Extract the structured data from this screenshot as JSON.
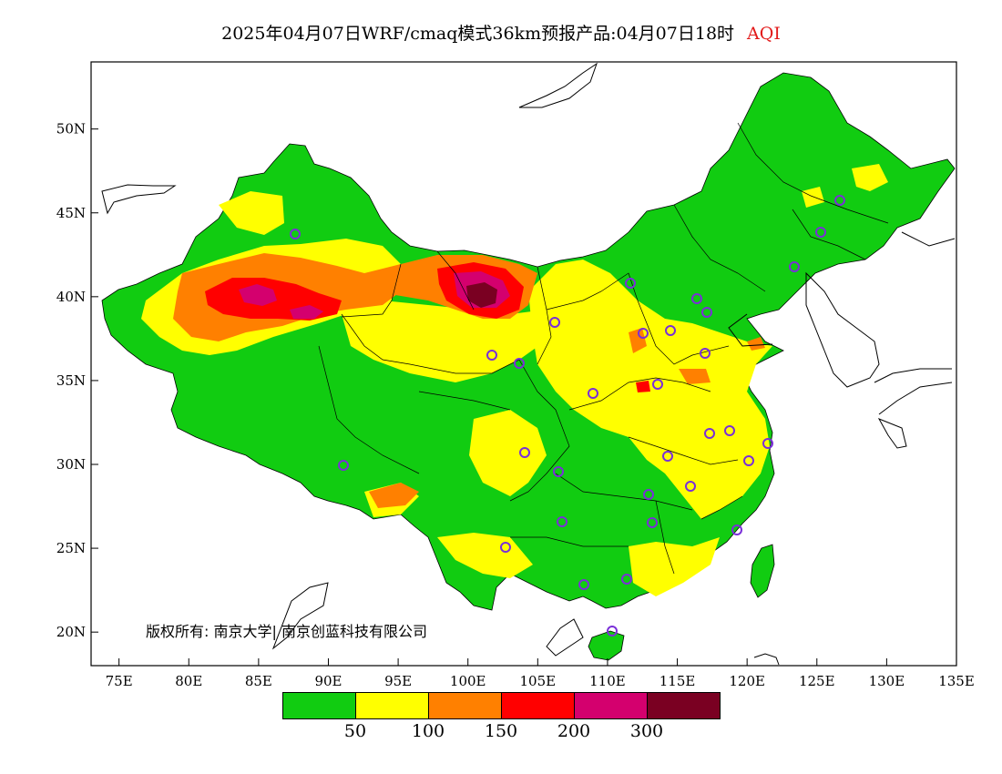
{
  "title": {
    "main": "2025年04月07日WRF/cmaq模式36km预报产品:04月07日18时",
    "highlight": "AQI"
  },
  "copyright": "版权所有: 南京大学| 南京创蓝科技有限公司",
  "axes": {
    "x_ticks": [
      "75E",
      "80E",
      "85E",
      "90E",
      "95E",
      "100E",
      "105E",
      "110E",
      "115E",
      "120E",
      "125E",
      "130E",
      "135E"
    ],
    "y_ticks": [
      "50N",
      "45N",
      "40N",
      "35N",
      "30N",
      "25N",
      "20N"
    ]
  },
  "legend": {
    "colors": [
      "#11cc11",
      "#ffff00",
      "#ff8000",
      "#ff0000",
      "#d4006e",
      "#7a0022"
    ],
    "labels": [
      "50",
      "100",
      "150",
      "200",
      "300"
    ]
  },
  "map": {
    "x_range": [
      73,
      135
    ],
    "y_range": [
      18,
      54
    ],
    "region_colors": [
      "#11cc11",
      "#ffff00",
      "#ff8000",
      "#ff0000",
      "#d4006e",
      "#7a0022"
    ],
    "station_marker_color": "#7a2fd8"
  }
}
